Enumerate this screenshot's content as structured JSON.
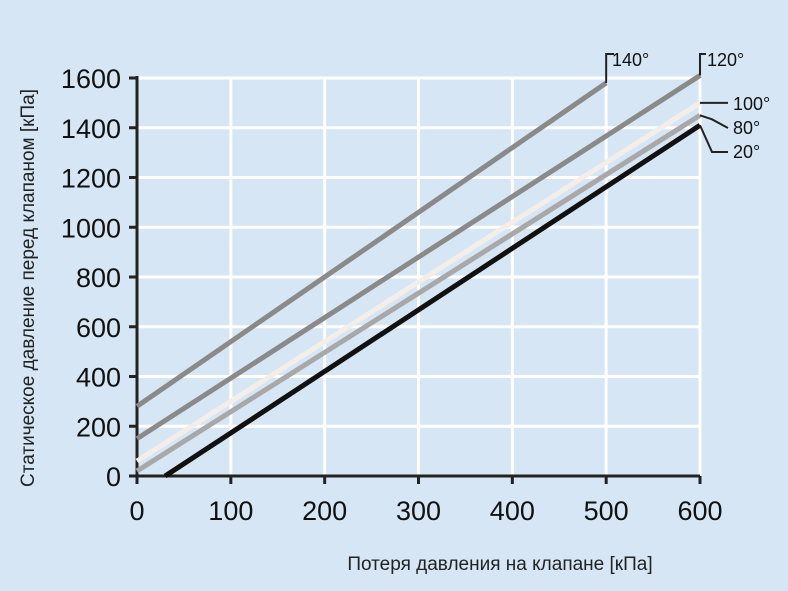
{
  "chart_data": {
    "type": "line",
    "title": "",
    "xlabel": "Потеря давления на клапане [кПа]",
    "ylabel": "Статическое давление перед клапаном [кПа]",
    "xlim": [
      0,
      600
    ],
    "ylim": [
      0,
      1600
    ],
    "x_ticks": [
      "0",
      "100",
      "200",
      "300",
      "400",
      "500",
      "600"
    ],
    "y_ticks": [
      "0",
      "200",
      "400",
      "600",
      "800",
      "1000",
      "1200",
      "1400",
      "1600"
    ],
    "grid": true,
    "series": [
      {
        "name": "140°",
        "x": [
          0,
          500
        ],
        "y": [
          280,
          1580
        ],
        "color": "#8a8a8a"
      },
      {
        "name": "120°",
        "x": [
          0,
          600
        ],
        "y": [
          150,
          1610
        ],
        "color": "#8a8a8a"
      },
      {
        "name": "100°",
        "x": [
          0,
          600
        ],
        "y": [
          60,
          1500
        ],
        "color": "#f3efe8"
      },
      {
        "name": "80°",
        "x": [
          0,
          600
        ],
        "y": [
          20,
          1450
        ],
        "color": "#a8a8a8"
      },
      {
        "name": "20°",
        "x": [
          30,
          600
        ],
        "y": [
          0,
          1410
        ],
        "color": "#111111"
      }
    ]
  },
  "colors": {
    "background": "#d6e6f5",
    "grid": "#ffffff",
    "axis": "#222222"
  }
}
